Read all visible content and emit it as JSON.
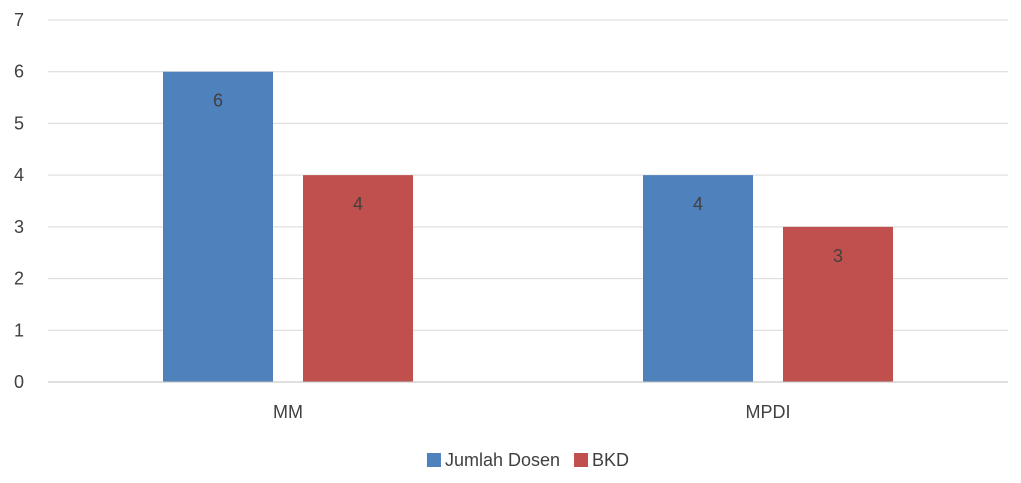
{
  "chart_data": {
    "type": "bar",
    "title": "",
    "xlabel": "",
    "ylabel": "",
    "categories": [
      "MM",
      "MPDI"
    ],
    "series": [
      {
        "name": "Jumlah Dosen",
        "values": [
          6,
          4
        ],
        "color": "#4f81bd"
      },
      {
        "name": "BKD",
        "values": [
          4,
          3
        ],
        "color": "#c0504d"
      }
    ],
    "ylim": [
      0,
      7
    ],
    "yticks": [
      0,
      1,
      2,
      3,
      4,
      5,
      6,
      7
    ],
    "grid": true,
    "data_labels": true,
    "legend_position": "bottom"
  }
}
